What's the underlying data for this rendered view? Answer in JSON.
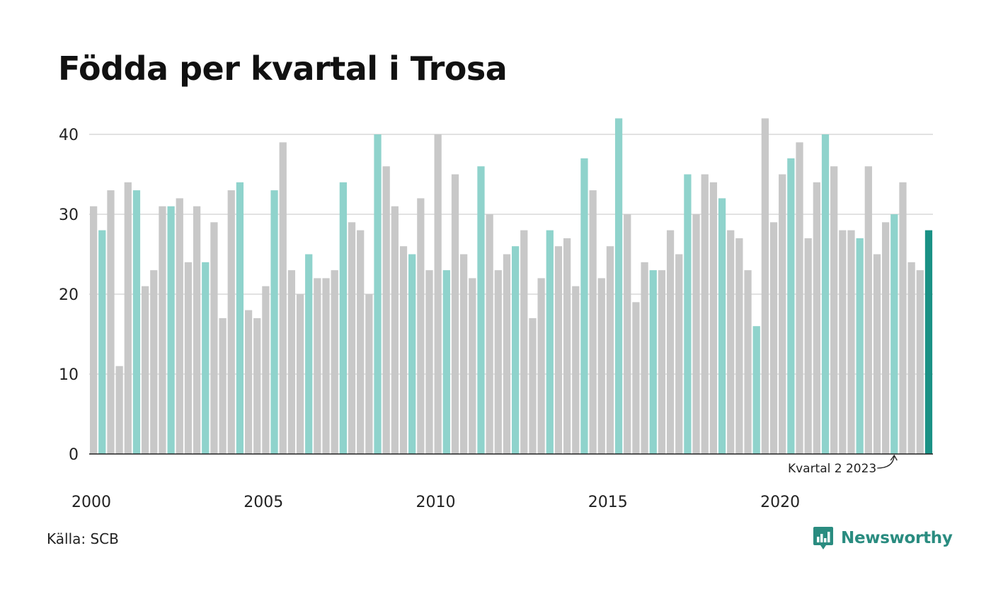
{
  "title": "Födda per kvartal i Trosa",
  "source": "Källa: SCB",
  "brand": {
    "name": "Newsworthy",
    "icon": "bar-chart-speech-bubble-icon",
    "color": "#2a8c80"
  },
  "colors": {
    "default": "#c8c8c8",
    "highlight": "#8fd3cc",
    "latest": "#1a9185",
    "grid": "#e2e2e2",
    "axis": "#222222"
  },
  "chart_data": {
    "type": "bar",
    "title": "Födda per kvartal i Trosa",
    "xlabel": "",
    "ylabel": "",
    "ylim": [
      0,
      42
    ],
    "yticks": [
      0,
      10,
      20,
      30,
      40
    ],
    "xticks": [
      {
        "label": "2000",
        "index": 0
      },
      {
        "label": "2005",
        "index": 20
      },
      {
        "label": "2010",
        "index": 40
      },
      {
        "label": "2015",
        "index": 60
      },
      {
        "label": "2020",
        "index": 80
      }
    ],
    "grid": true,
    "highlight_quarter": 2,
    "start_year": 2000,
    "values": [
      31,
      28,
      33,
      11,
      34,
      33,
      21,
      23,
      31,
      31,
      32,
      24,
      31,
      24,
      29,
      17,
      33,
      34,
      18,
      17,
      21,
      33,
      39,
      23,
      20,
      25,
      22,
      22,
      23,
      34,
      29,
      28,
      20,
      40,
      36,
      31,
      26,
      25,
      32,
      23,
      40,
      23,
      35,
      25,
      22,
      36,
      30,
      23,
      25,
      26,
      28,
      17,
      22,
      28,
      26,
      27,
      21,
      37,
      33,
      22,
      26,
      42,
      30,
      19,
      24,
      23,
      23,
      28,
      25,
      35,
      30,
      35,
      34,
      32,
      28,
      27,
      23,
      16,
      42,
      29,
      35,
      37,
      39,
      27,
      34,
      40,
      36,
      28,
      28,
      27,
      36,
      25,
      29,
      30,
      34,
      24,
      23,
      28
    ],
    "annotation": {
      "label": "Kvartal 2 2023",
      "target_index": 93
    }
  }
}
